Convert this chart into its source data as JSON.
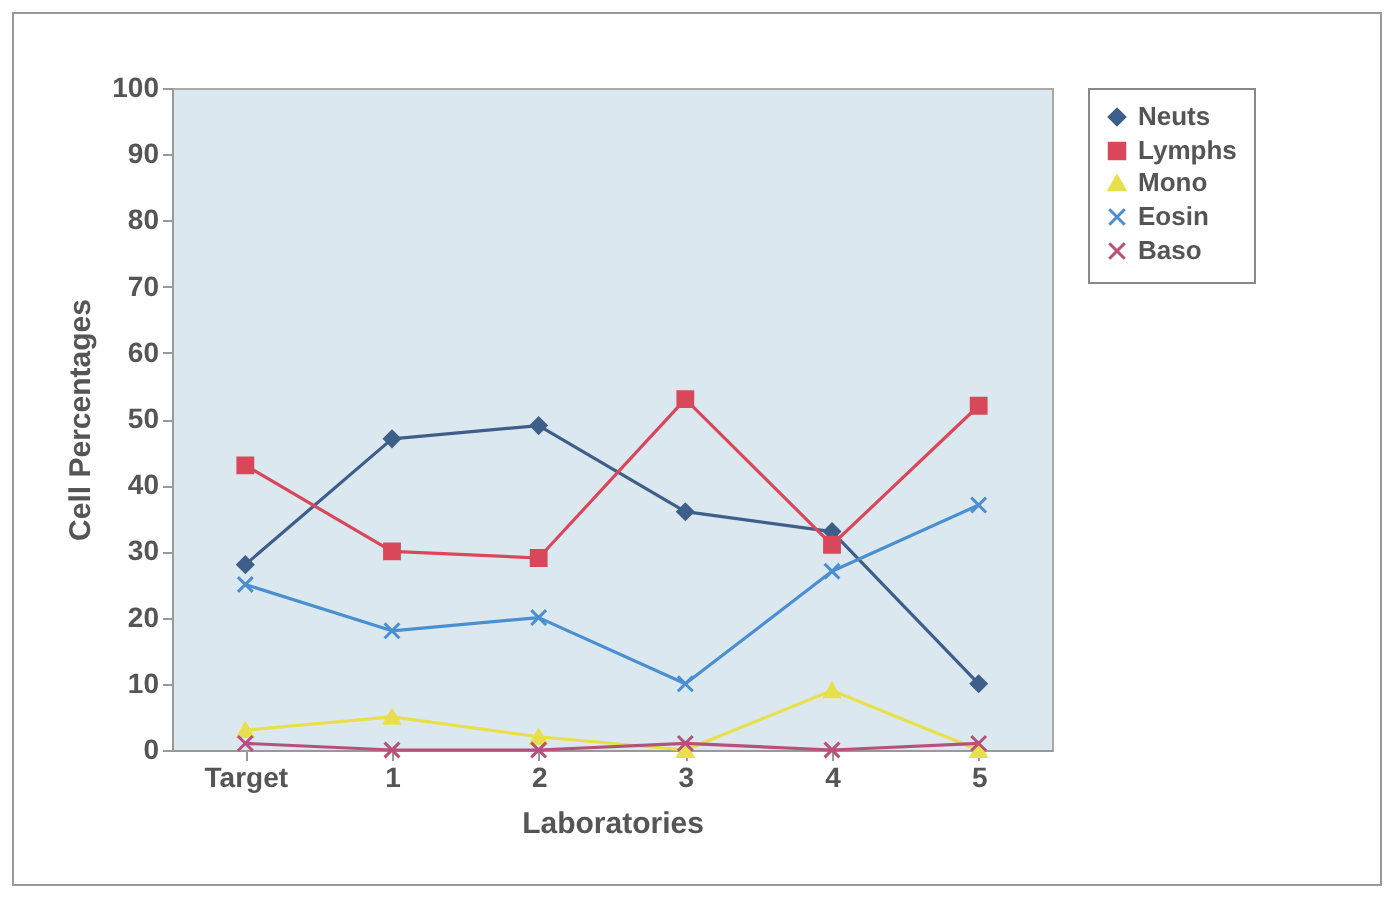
{
  "chart_data": {
    "type": "line",
    "xlabel": "Laboratories",
    "ylabel": "Cell Percentages",
    "categories": [
      "Target",
      "1",
      "2",
      "3",
      "4",
      "5"
    ],
    "ylim": [
      0,
      100
    ],
    "yticks": [
      0,
      10,
      20,
      30,
      40,
      50,
      60,
      70,
      80,
      90,
      100
    ],
    "grid": false,
    "legend": "right",
    "series": [
      {
        "name": "Neuts",
        "color": "#3d5f8a",
        "marker": "diamond",
        "values": [
          28,
          47,
          49,
          36,
          33,
          10
        ]
      },
      {
        "name": "Lymphs",
        "color": "#d9475a",
        "marker": "square",
        "values": [
          43,
          30,
          29,
          53,
          31,
          52
        ]
      },
      {
        "name": "Mono",
        "color": "#e8e04a",
        "marker": "triangle",
        "values": [
          3,
          5,
          2,
          0,
          9,
          0
        ]
      },
      {
        "name": "Eosin",
        "color": "#4a8fd0",
        "marker": "cross",
        "values": [
          25,
          18,
          20,
          10,
          27,
          37
        ]
      },
      {
        "name": "Baso",
        "color": "#b8507a",
        "marker": "cross",
        "values": [
          1,
          0,
          0,
          1,
          0,
          1
        ]
      }
    ]
  }
}
